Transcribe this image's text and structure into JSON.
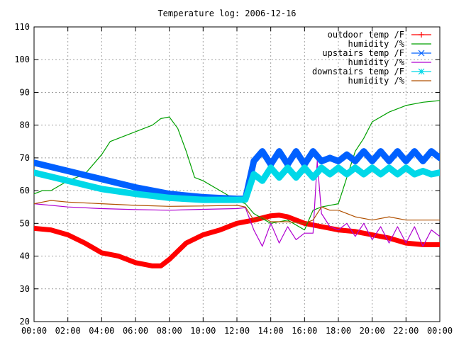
{
  "chart_data": {
    "type": "line",
    "title": "Temperature log: 2006-12-16",
    "xlabel": "",
    "ylabel": "",
    "xlim": [
      0,
      24
    ],
    "ylim": [
      20,
      110
    ],
    "x_ticks": [
      "00:00",
      "02:00",
      "04:00",
      "06:00",
      "08:00",
      "10:00",
      "12:00",
      "14:00",
      "16:00",
      "18:00",
      "20:00",
      "22:00",
      "00:00"
    ],
    "y_ticks": [
      "20",
      "30",
      "40",
      "50",
      "60",
      "70",
      "80",
      "90",
      "100",
      "110"
    ],
    "grid": true,
    "legend_position": "top-right",
    "series": [
      {
        "name": "outdoor temp /F",
        "color": "#ff0000",
        "marker": "plus",
        "x": [
          0,
          1,
          2,
          3,
          4,
          5,
          6,
          7,
          7.5,
          8,
          9,
          10,
          11,
          12,
          13,
          14,
          14.5,
          15,
          16,
          17,
          18,
          19,
          20,
          21,
          22,
          23,
          24
        ],
        "y": [
          48.5,
          48,
          46.5,
          44,
          41,
          40,
          38,
          37,
          37,
          39,
          44,
          46.5,
          48,
          50,
          51,
          52.3,
          52.5,
          52,
          50,
          49,
          48,
          47.5,
          46.5,
          45.5,
          44,
          43.5,
          43.5
        ]
      },
      {
        "name": "humidity /%",
        "color": "#00a000",
        "marker": "none",
        "x": [
          0,
          0.5,
          1,
          2,
          3,
          4,
          4.5,
          5,
          6,
          7,
          7.5,
          8,
          8.5,
          9,
          9.5,
          10,
          11,
          12,
          12.5,
          13,
          14,
          15,
          16,
          16.5,
          17,
          18,
          18.5,
          19,
          19.5,
          20,
          21,
          22,
          23,
          24
        ],
        "y": [
          59,
          60,
          60,
          63,
          65,
          71,
          75,
          76,
          78,
          80,
          82,
          82.5,
          79,
          72,
          64,
          63,
          60,
          57,
          56,
          53,
          50,
          51,
          48,
          54,
          55,
          56,
          64,
          72,
          76,
          81,
          84,
          86,
          87,
          87.5
        ]
      },
      {
        "name": "upstairs temp /F",
        "color": "#0060ff",
        "marker": "cross",
        "x": [
          0,
          2,
          4,
          6,
          8,
          10,
          12,
          12.5,
          13,
          13.5,
          14,
          14.5,
          15,
          15.5,
          16,
          16.5,
          17,
          17.5,
          18,
          18.5,
          19,
          19.5,
          20,
          20.5,
          21,
          21.5,
          22,
          22.5,
          23,
          23.5,
          24
        ],
        "y": [
          68.5,
          66,
          63.5,
          61,
          59,
          58,
          57.5,
          57.5,
          69,
          72,
          68,
          72,
          68,
          72,
          68,
          72,
          69,
          70,
          69,
          71,
          69,
          72,
          69,
          72,
          69,
          72,
          69,
          72,
          69,
          72,
          70
        ]
      },
      {
        "name": "humidity /%",
        "color": "#b000d0",
        "marker": "none",
        "x": [
          0,
          2,
          4,
          6,
          8,
          10,
          12,
          12.5,
          13,
          13.5,
          14,
          14.5,
          15,
          15.5,
          16,
          16.5,
          16.75,
          17,
          17.5,
          18,
          18.5,
          19,
          19.5,
          20,
          20.5,
          21,
          21.5,
          22,
          22.5,
          23,
          23.5,
          24
        ],
        "y": [
          56,
          55,
          54.5,
          54.2,
          54,
          54.3,
          54.5,
          54.8,
          48,
          43,
          50,
          44,
          49,
          45,
          47,
          47,
          69,
          53,
          49,
          48,
          50,
          46,
          50,
          45,
          49,
          44,
          49,
          44,
          49,
          43,
          48,
          46
        ]
      },
      {
        "name": "downstairs temp /F",
        "color": "#00d8e8",
        "marker": "star",
        "x": [
          0,
          2,
          4,
          6,
          8,
          10,
          12,
          12.5,
          13,
          13.5,
          14,
          14.5,
          15,
          15.5,
          16,
          16.5,
          17,
          17.5,
          18,
          18.5,
          19,
          19.5,
          20,
          20.5,
          21,
          21.5,
          22,
          22.5,
          23,
          23.5,
          24
        ],
        "y": [
          65.5,
          63,
          60.5,
          59,
          57.8,
          57.2,
          57.2,
          57.3,
          65,
          63,
          67,
          64,
          67,
          64,
          67,
          64,
          67,
          65,
          67,
          65,
          67,
          65,
          67,
          65,
          67,
          65,
          67,
          65,
          66,
          65,
          65.5
        ]
      },
      {
        "name": "humidity /%",
        "color": "#b05000",
        "marker": "none",
        "x": [
          0,
          0.5,
          1,
          2,
          4,
          6,
          8,
          10,
          12,
          12.5,
          13,
          13.5,
          14,
          15,
          16,
          16.5,
          17,
          17.5,
          18,
          19,
          20,
          21,
          22,
          23,
          24
        ],
        "y": [
          56,
          56.5,
          57,
          56.5,
          56,
          55.5,
          55.2,
          55.3,
          55.5,
          55,
          51,
          52,
          50.5,
          50.5,
          50,
          51,
          55,
          54,
          54,
          52,
          51,
          52,
          51,
          51,
          51
        ]
      }
    ]
  }
}
